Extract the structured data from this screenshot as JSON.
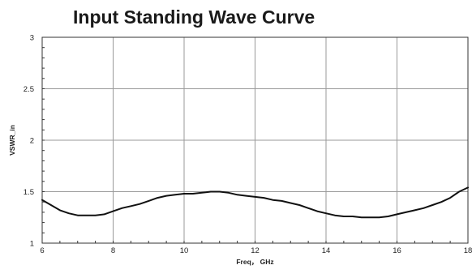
{
  "chart_data": {
    "type": "line",
    "title": "Input Standing Wave Curve",
    "xlabel": "Freq， GHz",
    "ylabel": "VSWR_in",
    "xlim": [
      6,
      18
    ],
    "ylim": [
      1,
      3
    ],
    "xticks": [
      6,
      8,
      10,
      12,
      14,
      16,
      18
    ],
    "yticks": [
      1,
      1.5,
      2,
      2.5,
      3
    ],
    "xtick_labels": [
      "6",
      "8",
      "10",
      "12",
      "14",
      "16",
      "18"
    ],
    "ytick_labels": [
      "1",
      "1.5",
      "2",
      "2.5",
      "3"
    ],
    "grid": true,
    "legend": "none",
    "line_color": "#111111",
    "series": [
      {
        "x": [
          6.0,
          6.25,
          6.5,
          6.75,
          7.0,
          7.25,
          7.5,
          7.75,
          8.0,
          8.25,
          8.5,
          8.75,
          9.0,
          9.25,
          9.5,
          9.75,
          10.0,
          10.25,
          10.5,
          10.75,
          11.0,
          11.25,
          11.5,
          11.75,
          12.0,
          12.25,
          12.5,
          12.75,
          13.0,
          13.25,
          13.5,
          13.75,
          14.0,
          14.25,
          14.5,
          14.75,
          15.0,
          15.25,
          15.5,
          15.75,
          16.0,
          16.25,
          16.5,
          16.75,
          17.0,
          17.25,
          17.5,
          17.75,
          18.0
        ],
        "y": [
          1.42,
          1.37,
          1.32,
          1.29,
          1.27,
          1.27,
          1.27,
          1.28,
          1.31,
          1.34,
          1.36,
          1.38,
          1.41,
          1.44,
          1.46,
          1.47,
          1.48,
          1.48,
          1.49,
          1.5,
          1.5,
          1.49,
          1.47,
          1.46,
          1.45,
          1.44,
          1.42,
          1.41,
          1.39,
          1.37,
          1.34,
          1.31,
          1.29,
          1.27,
          1.26,
          1.26,
          1.25,
          1.25,
          1.25,
          1.26,
          1.28,
          1.3,
          1.32,
          1.34,
          1.37,
          1.4,
          1.44,
          1.5,
          1.54
        ]
      }
    ]
  }
}
